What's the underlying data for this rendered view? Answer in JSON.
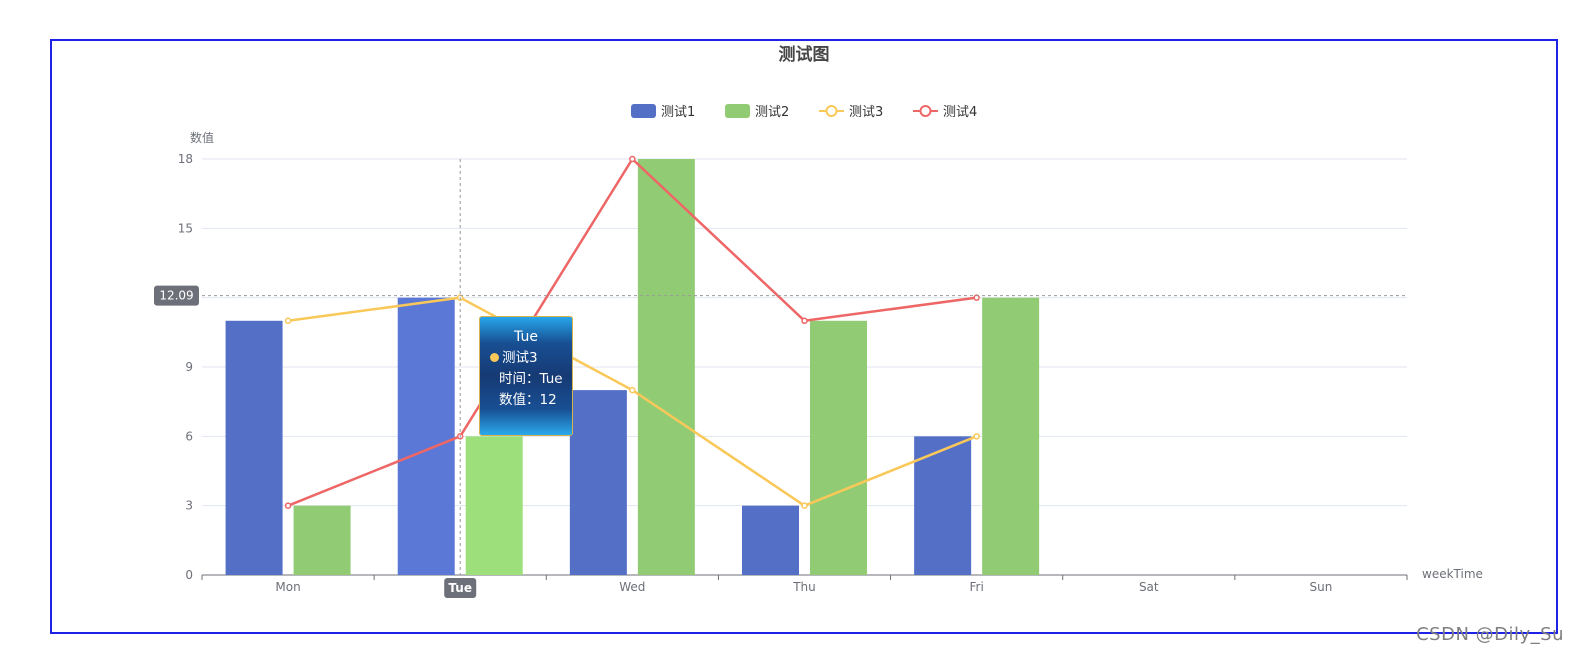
{
  "watermark": "CSDN @Dily_Su",
  "chart_data": {
    "type": "bar",
    "title": "测试图",
    "ylabel": "数值",
    "xlabel": "weekTime",
    "categories": [
      "Mon",
      "Tue",
      "Wed",
      "Thu",
      "Fri",
      "Sat",
      "Sun"
    ],
    "ylim": [
      0,
      18
    ],
    "yticks": [
      0,
      3,
      6,
      9,
      12,
      15,
      18
    ],
    "grid": true,
    "legend_position": "top-center",
    "series": [
      {
        "name": "测试1",
        "type": "bar",
        "color": "#5470c6",
        "values": [
          11,
          12,
          8,
          3,
          6,
          null,
          null
        ]
      },
      {
        "name": "测试2",
        "type": "bar",
        "color": "#91cc75",
        "values": [
          3,
          6,
          18,
          11,
          12,
          null,
          null
        ]
      },
      {
        "name": "测试3",
        "type": "line",
        "color": "#fac858",
        "values": [
          11,
          12,
          8,
          3,
          6,
          null,
          null
        ]
      },
      {
        "name": "测试4",
        "type": "line",
        "color": "#ee6666",
        "values": [
          3,
          6,
          18,
          11,
          12,
          null,
          null
        ]
      }
    ],
    "axis_pointer": {
      "x_label": "Tue",
      "y_label": "12.09",
      "y_value": 12.09
    },
    "tooltip": {
      "title": "Tue",
      "series_name": "测试3",
      "line1": "时间：Tue",
      "line2": "数值：12"
    }
  }
}
